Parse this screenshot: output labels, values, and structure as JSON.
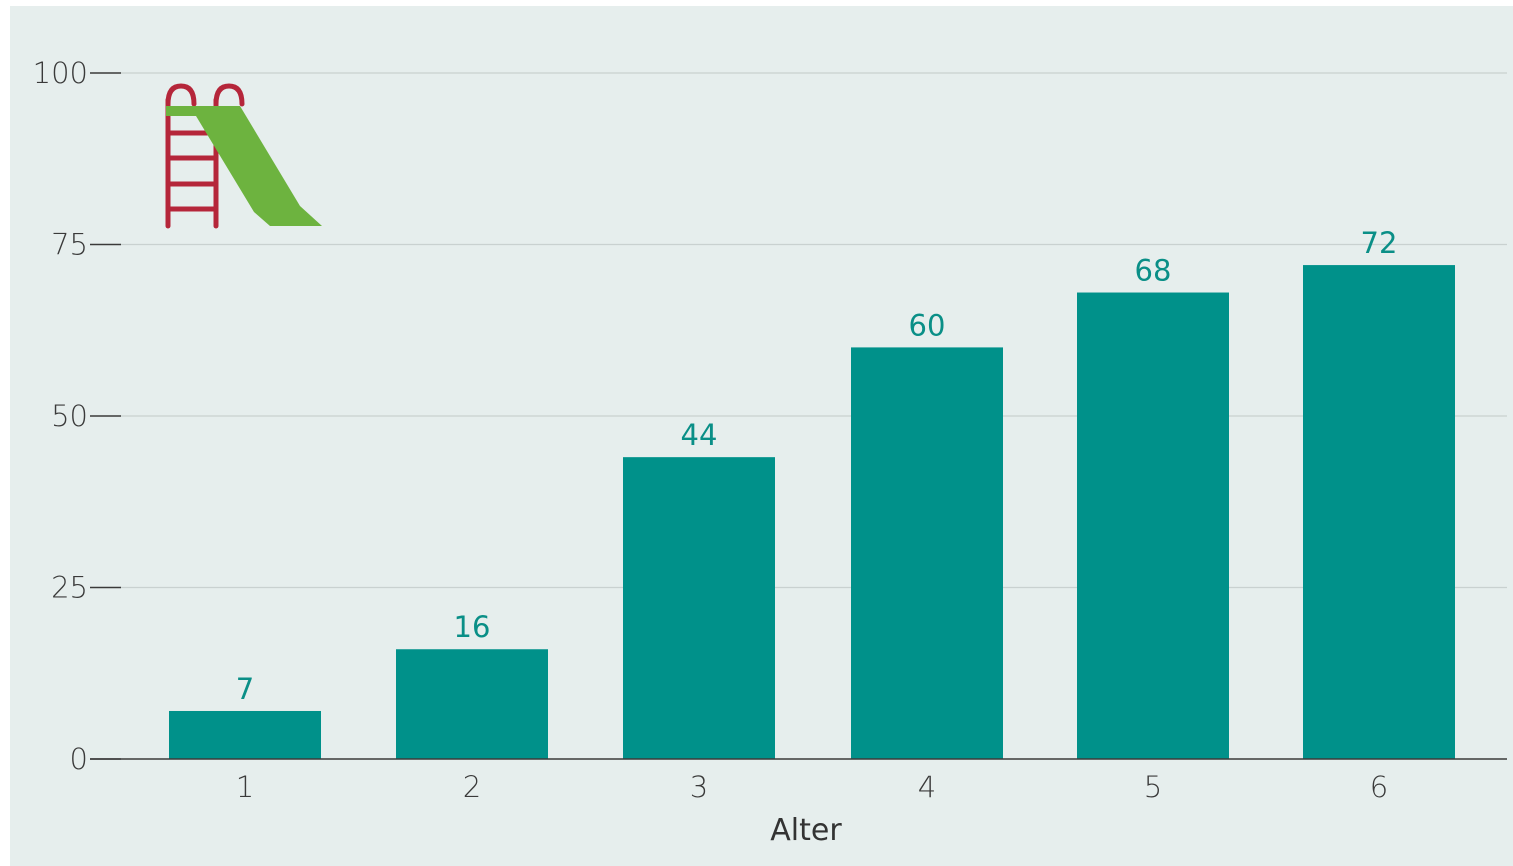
{
  "colors": {
    "panel_background": "#e6eeed",
    "bar": "#00918a",
    "value_label": "#0a8f87",
    "gridline": "#c9d1d0",
    "axis": "#3a3a3a",
    "slide_ladder": "#b5263a",
    "slide_chute": "#6db33f"
  },
  "icon": "playground-slide-icon",
  "chart_data": {
    "type": "bar",
    "categories": [
      "1",
      "2",
      "3",
      "4",
      "5",
      "6"
    ],
    "values": [
      7,
      16,
      44,
      60,
      68,
      72
    ],
    "value_labels": [
      "7",
      "16",
      "44",
      "60",
      "68",
      "72"
    ],
    "xlabel": "Alter",
    "ylabel": "",
    "ylim": [
      0,
      100
    ],
    "yticks": [
      0,
      25,
      50,
      75,
      100
    ],
    "ytick_labels": [
      "0",
      "25",
      "50",
      "75",
      "100"
    ],
    "grid": true,
    "legend": "none"
  }
}
